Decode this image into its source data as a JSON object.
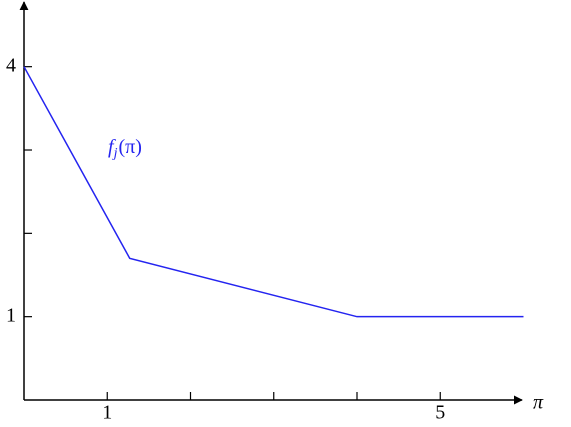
{
  "chart_data": {
    "type": "line",
    "x_label": "π",
    "annotation": {
      "base": "f",
      "sub": "j",
      "rest": "(π)"
    },
    "series": [
      {
        "color": "#2424f0",
        "x": [
          0,
          1.27,
          4,
          6
        ],
        "values": [
          4,
          1.7,
          1,
          1
        ]
      }
    ],
    "xlim": [
      0,
      6
    ],
    "ylim": [
      0,
      4.8
    ],
    "xticks": [
      1,
      5
    ],
    "minor_xticks": [
      2,
      3,
      4
    ],
    "yticks": [
      1,
      4
    ],
    "minor_yticks": [
      2,
      3
    ]
  }
}
